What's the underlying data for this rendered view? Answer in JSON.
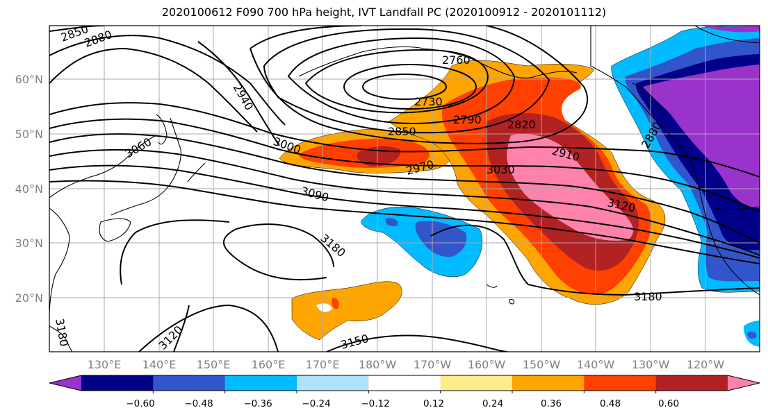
{
  "title": "2020100612 F090 700 hPa height, IVT Landfall PC (2020100912 - 2020101112)",
  "lat_labels": [
    "60°N",
    "50°N",
    "40°N",
    "30°N",
    "20°N"
  ],
  "lon_labels": [
    "130°E",
    "140°E",
    "150°E",
    "160°E",
    "170°E",
    "180°W",
    "170°W",
    "160°W",
    "150°W",
    "140°W",
    "130°W",
    "120°W"
  ],
  "contour_labels": [
    "2850",
    "2880",
    "2760",
    "2730",
    "2790",
    "2820",
    "2850",
    "2910",
    "2940",
    "3000",
    "2970",
    "3030",
    "3060",
    "3090",
    "3120",
    "3180",
    "3180",
    "3150",
    "3120",
    "3180",
    "2880"
  ],
  "colorbar": {
    "tick_labels": [
      "−0.60",
      "−0.48",
      "−0.36",
      "−0.24",
      "−0.12",
      "0.12",
      "0.24",
      "0.36",
      "0.48",
      "0.60"
    ],
    "colors": [
      "#9933cc",
      "#000088",
      "#3355cc",
      "#00bbff",
      "#b0e0ff",
      "#ffffff",
      "#ffeb8a",
      "#ffa500",
      "#ff4000",
      "#b22222",
      "#ff82ab"
    ]
  }
}
